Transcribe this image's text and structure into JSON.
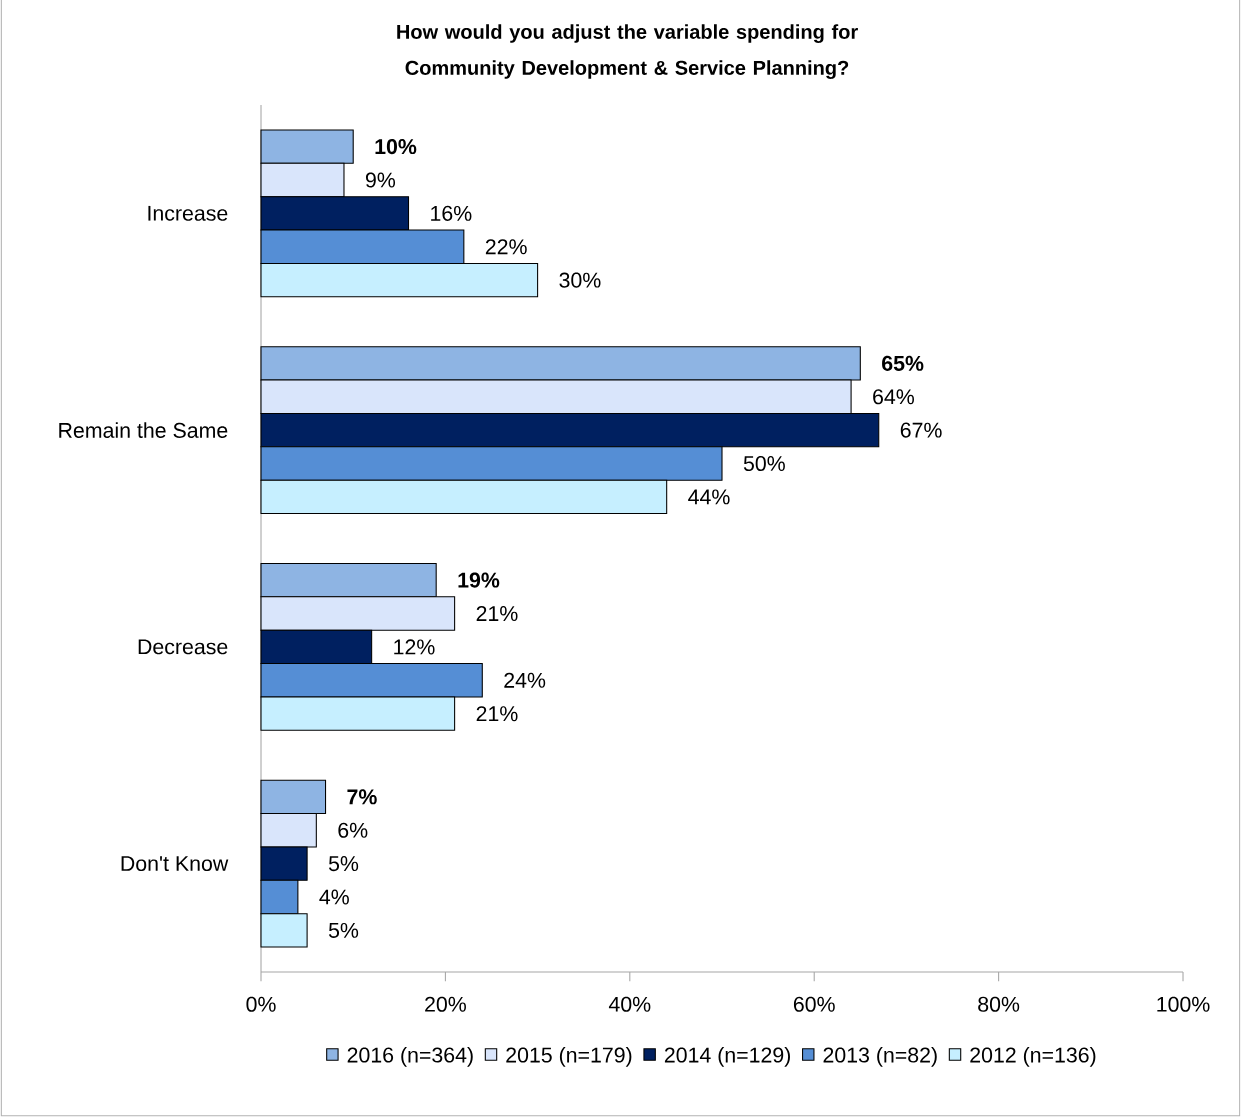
{
  "chart_data": {
    "type": "bar",
    "orientation": "horizontal",
    "title": "How would you adjust the variable spending for Community Development & Service Planning?",
    "categories": [
      "Increase",
      "Remain the Same",
      "Decrease",
      "Don't Know"
    ],
    "series": [
      {
        "name": "2016 (n=364)",
        "color": "#8eb4e3",
        "values": [
          10,
          65,
          19,
          7
        ],
        "value_labels": [
          "**10%**",
          "**65%**",
          "**19%**",
          "**7%**"
        ]
      },
      {
        "name": "2015 (n=179)",
        "color": "#d9e5fb",
        "values": [
          9,
          64,
          21,
          6
        ],
        "value_labels": [
          "9%",
          "64%",
          "21%",
          "6%"
        ]
      },
      {
        "name": "2014 (n=129)",
        "color": "#002060",
        "values": [
          16,
          67,
          12,
          5
        ],
        "value_labels": [
          "16%",
          "67%",
          "12%",
          "5%"
        ]
      },
      {
        "name": "2013 (n=82)",
        "color": "#558ed5",
        "values": [
          22,
          50,
          24,
          4
        ],
        "value_labels": [
          "22%",
          "50%",
          "24%",
          "4%"
        ]
      },
      {
        "name": "2012 (n=136)",
        "color": "#c6efff",
        "values": [
          30,
          44,
          21,
          5
        ],
        "value_labels": [
          "30%",
          "44%",
          "21%",
          "5%"
        ]
      }
    ],
    "xlim": [
      0,
      100
    ],
    "xticks": [
      {
        "value": 0,
        "label": "0%"
      },
      {
        "value": 20,
        "label": "20%"
      },
      {
        "value": 40,
        "label": "40%"
      },
      {
        "value": 60,
        "label": "60%"
      },
      {
        "value": 80,
        "label": "80%"
      },
      {
        "value": 100,
        "label": "100%"
      }
    ],
    "grid": false,
    "legend": "bottom"
  }
}
